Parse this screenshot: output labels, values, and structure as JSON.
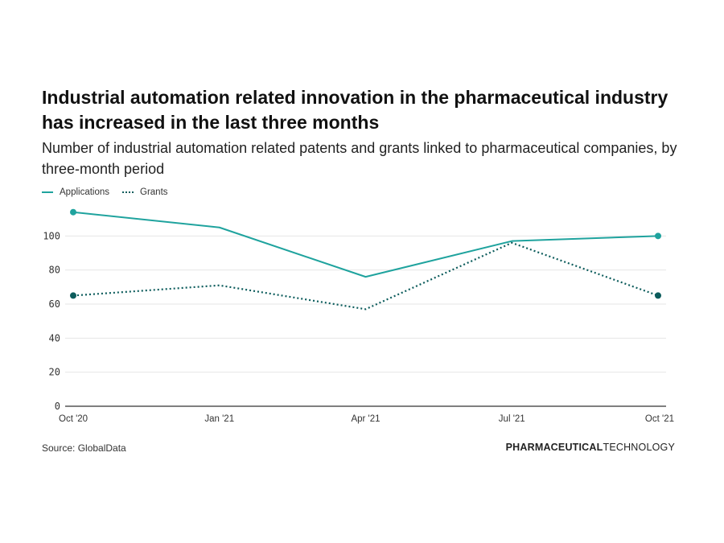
{
  "title": "Industrial automation related innovation in the pharmaceutical industry has increased in the last three months",
  "subtitle": "Number of industrial automation related patents and grants linked to pharmaceutical companies, by three-month period",
  "source": "Source: GlobalData",
  "brand": {
    "bold": "PHARMACEUTICAL",
    "light": "TECHNOLOGY"
  },
  "colors": {
    "applications": "#1fa39e",
    "grants": "#0c5c5c",
    "grid": "#e6e6e6",
    "axis": "#333333"
  },
  "chart_data": {
    "type": "line",
    "title": "Industrial automation related innovation in the pharmaceutical industry has increased in the last three months",
    "subtitle": "Number of industrial automation related patents and grants linked to pharmaceutical companies, by three-month period",
    "xlabel": "",
    "ylabel": "",
    "categories": [
      "Oct '20",
      "Jan '21",
      "Apr '21",
      "Jul '21",
      "Oct '21"
    ],
    "yticks": [
      0,
      20,
      40,
      60,
      80,
      100
    ],
    "ylim": [
      0,
      120
    ],
    "grid": true,
    "legend": "top-left",
    "series": [
      {
        "name": "Applications",
        "style": "solid",
        "values": [
          114,
          105,
          76,
          97,
          100
        ]
      },
      {
        "name": "Grants",
        "style": "dotted",
        "values": [
          65,
          71,
          57,
          96,
          65
        ]
      }
    ]
  }
}
